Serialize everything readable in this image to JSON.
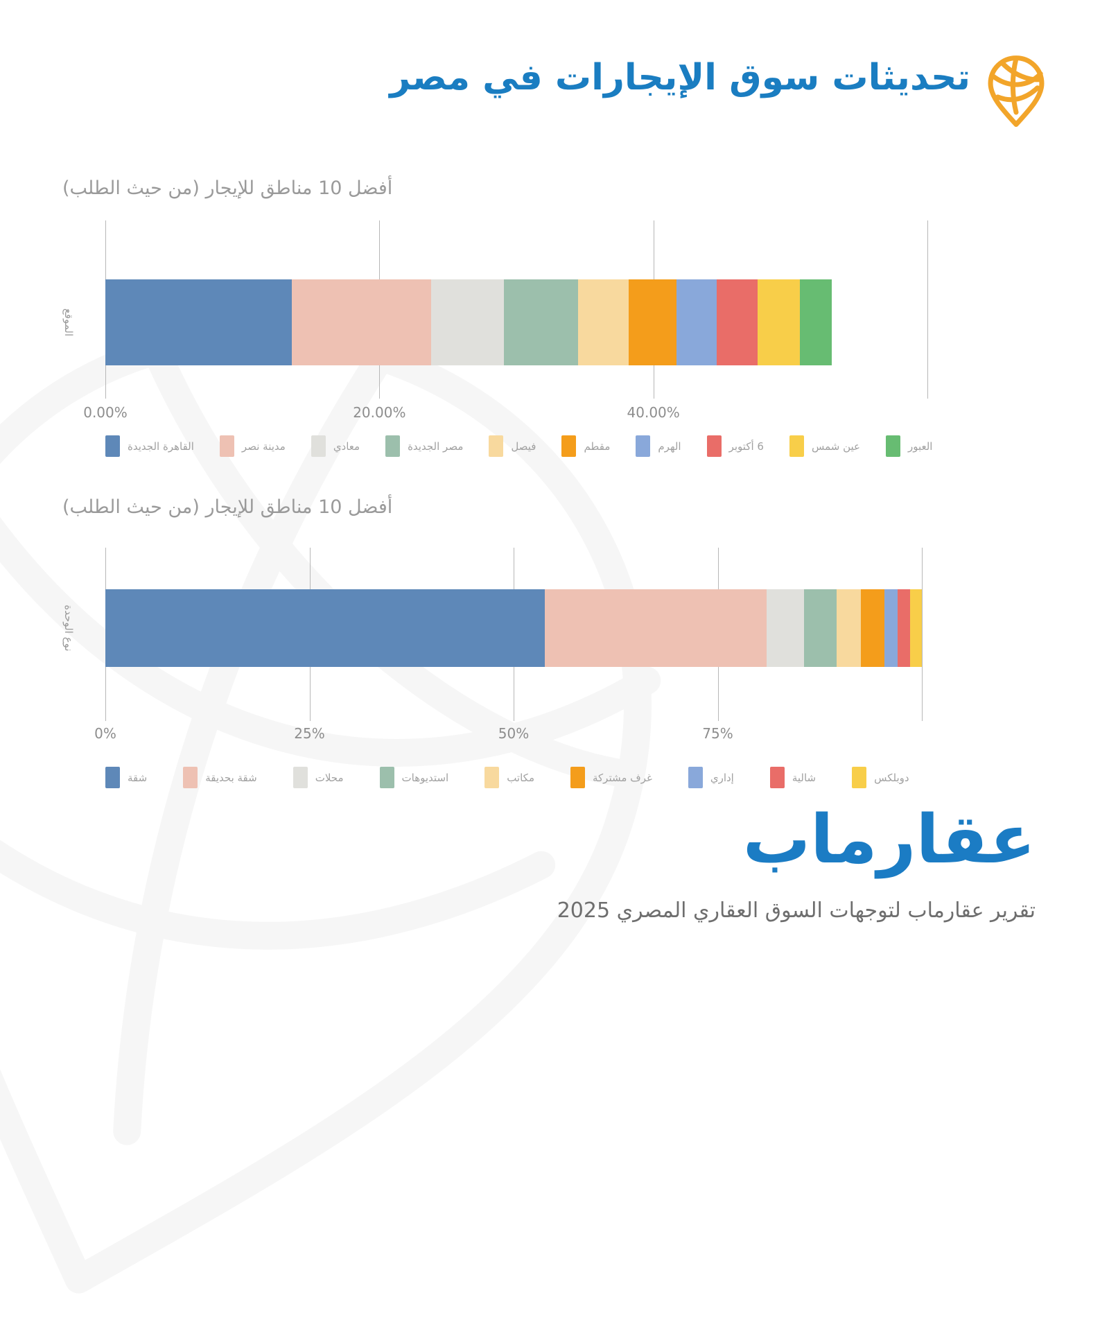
{
  "header": {
    "title": "تحديثات سوق الإيجارات في مصر"
  },
  "colors": {
    "brand_blue": "#1a7dc1",
    "logo_blue": "#1b7cc4",
    "pin_orange": "#f2a52a",
    "muted_text": "#9a9a9a"
  },
  "chart_data": [
    {
      "type": "bar",
      "stacked": true,
      "orientation": "horizontal",
      "title": "أفضل 10 مناطق للإيجار (من حيث الطلب)",
      "ylabel": "الموقع",
      "xlabel": "",
      "xlim": [
        0,
        60
      ],
      "grid": true,
      "legend_position": "bottom",
      "ticks": [
        {
          "pos": 0,
          "label": "0.00%"
        },
        {
          "pos": 20,
          "label": "20.00%"
        },
        {
          "pos": 40,
          "label": "40.00%"
        },
        {
          "pos": 60,
          "label": ""
        }
      ],
      "series": [
        {
          "name": "القاهرة الجديدة",
          "value": 13.6,
          "color": "#5e88b8"
        },
        {
          "name": "مدينة نصر",
          "value": 10.2,
          "color": "#eec1b3"
        },
        {
          "name": "معادي",
          "value": 5.3,
          "color": "#e0e0dc"
        },
        {
          "name": "مصر الجديدة",
          "value": 5.4,
          "color": "#9cbfac"
        },
        {
          "name": "فيصل",
          "value": 3.7,
          "color": "#f8d99e"
        },
        {
          "name": "مقطم",
          "value": 3.5,
          "color": "#f49d1b"
        },
        {
          "name": "الهرم",
          "value": 2.9,
          "color": "#89a8da"
        },
        {
          "name": "6 أكتوبر",
          "value": 3.0,
          "color": "#e96d68"
        },
        {
          "name": "عين شمس",
          "value": 3.1,
          "color": "#f8ce49"
        },
        {
          "name": "العبور",
          "value": 2.3,
          "color": "#67bc72"
        }
      ]
    },
    {
      "type": "bar",
      "stacked": true,
      "orientation": "horizontal",
      "title": "أفضل 10 مناطق للإيجار (من حيث الطلب)",
      "ylabel": "نوع الوحدة",
      "xlabel": "",
      "xlim": [
        0,
        100
      ],
      "grid": true,
      "legend_position": "bottom",
      "ticks": [
        {
          "pos": 0,
          "label": "0%"
        },
        {
          "pos": 25,
          "label": "25%"
        },
        {
          "pos": 50,
          "label": "50%"
        },
        {
          "pos": 75,
          "label": "75%"
        },
        {
          "pos": 100,
          "label": ""
        }
      ],
      "series": [
        {
          "name": "شقة",
          "value": 53.8,
          "color": "#5e88b8"
        },
        {
          "name": "شقة بحديقة",
          "value": 27.2,
          "color": "#eec1b3"
        },
        {
          "name": "محلات",
          "value": 4.6,
          "color": "#e0e0dc"
        },
        {
          "name": "استديوهات",
          "value": 4.0,
          "color": "#9cbfac"
        },
        {
          "name": "مكاتب",
          "value": 2.9,
          "color": "#f8d99e"
        },
        {
          "name": "غرف مشتركة",
          "value": 2.9,
          "color": "#f49d1b"
        },
        {
          "name": "إداري",
          "value": 1.6,
          "color": "#89a8da"
        },
        {
          "name": "شالية",
          "value": 1.6,
          "color": "#e96d68"
        },
        {
          "name": "دوبلكس",
          "value": 1.4,
          "color": "#f8ce49"
        }
      ]
    }
  ],
  "footer": {
    "logo": "عقارماب",
    "caption": "تقرير عقارماب لتوجهات السوق العقاري المصري 2025"
  }
}
